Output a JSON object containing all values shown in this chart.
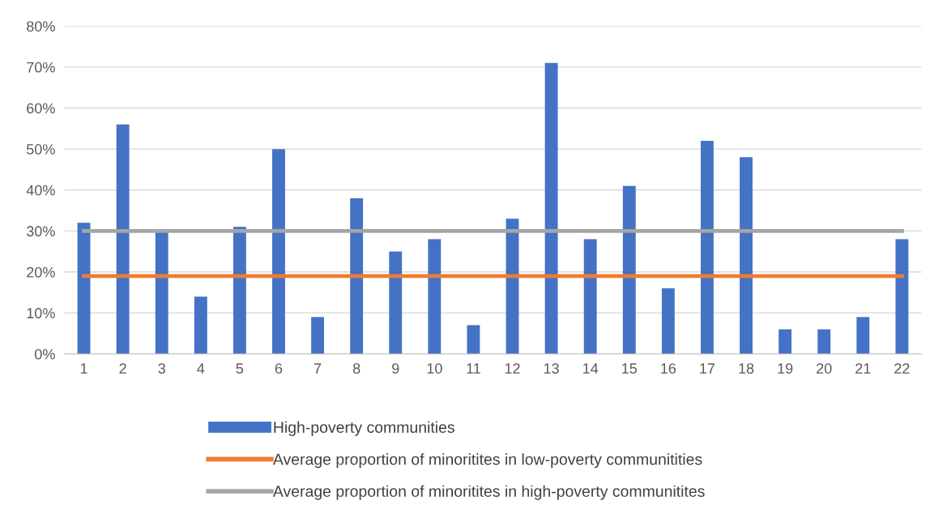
{
  "chart_data": {
    "type": "bar",
    "categories": [
      "1",
      "2",
      "3",
      "4",
      "5",
      "6",
      "7",
      "8",
      "9",
      "10",
      "11",
      "12",
      "13",
      "14",
      "15",
      "16",
      "17",
      "18",
      "19",
      "20",
      "21",
      "22"
    ],
    "series": [
      {
        "name": "High-poverty communities",
        "color": "#4472c4",
        "values": [
          32,
          56,
          30,
          14,
          31,
          50,
          9,
          38,
          25,
          28,
          7,
          33,
          71,
          28,
          41,
          16,
          52,
          48,
          6,
          6,
          9,
          28
        ]
      },
      {
        "name": "Average proportion of minoritites in low-poverty communitities",
        "type": "line",
        "color": "#ed7d31",
        "values": [
          19,
          19,
          19,
          19,
          19,
          19,
          19,
          19,
          19,
          19,
          19,
          19,
          19,
          19,
          19,
          19,
          19,
          19,
          19,
          19,
          19,
          19
        ]
      },
      {
        "name": "Average proportion of minoritites in high-poverty communitites",
        "type": "line",
        "color": "#a5a5a5",
        "values": [
          30,
          30,
          30,
          30,
          30,
          30,
          30,
          30,
          30,
          30,
          30,
          30,
          30,
          30,
          30,
          30,
          30,
          30,
          30,
          30,
          30,
          30
        ]
      }
    ],
    "ylim": [
      0,
      80
    ],
    "yticks": [
      {
        "value": 0,
        "label": "0%"
      },
      {
        "value": 10,
        "label": "10%"
      },
      {
        "value": 20,
        "label": "20%"
      },
      {
        "value": 30,
        "label": "30%"
      },
      {
        "value": 40,
        "label": "40%"
      },
      {
        "value": 50,
        "label": "50%"
      },
      {
        "value": 60,
        "label": "60%"
      },
      {
        "value": 70,
        "label": "70%"
      },
      {
        "value": 80,
        "label": "80%"
      }
    ],
    "grid": "y",
    "legend": "bottom",
    "marker": "none",
    "line_style": "solid"
  }
}
